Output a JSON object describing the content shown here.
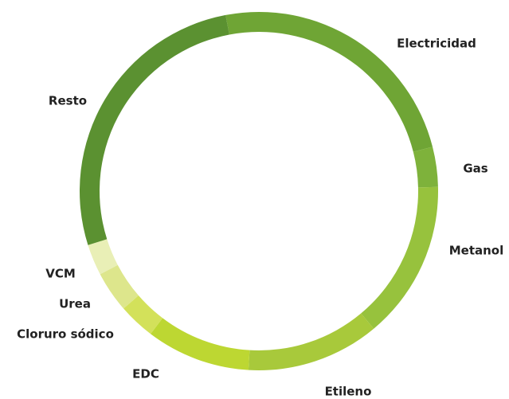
{
  "chart_data": {
    "type": "donut",
    "categories": [
      "Electricidad",
      "Gas",
      "Metanol",
      "Etileno",
      "EDC",
      "Cloruro sódico",
      "Urea",
      "VCM",
      "Resto"
    ],
    "values": [
      24,
      3.6,
      14.3,
      12,
      9.4,
      3.3,
      3.7,
      2.8,
      26.9
    ],
    "colors": [
      "#6fa535",
      "#7eb23b",
      "#97c23d",
      "#a8c93b",
      "#bdd732",
      "#d3e15a",
      "#dde68c",
      "#e9efb6",
      "#5b9131"
    ]
  }
}
